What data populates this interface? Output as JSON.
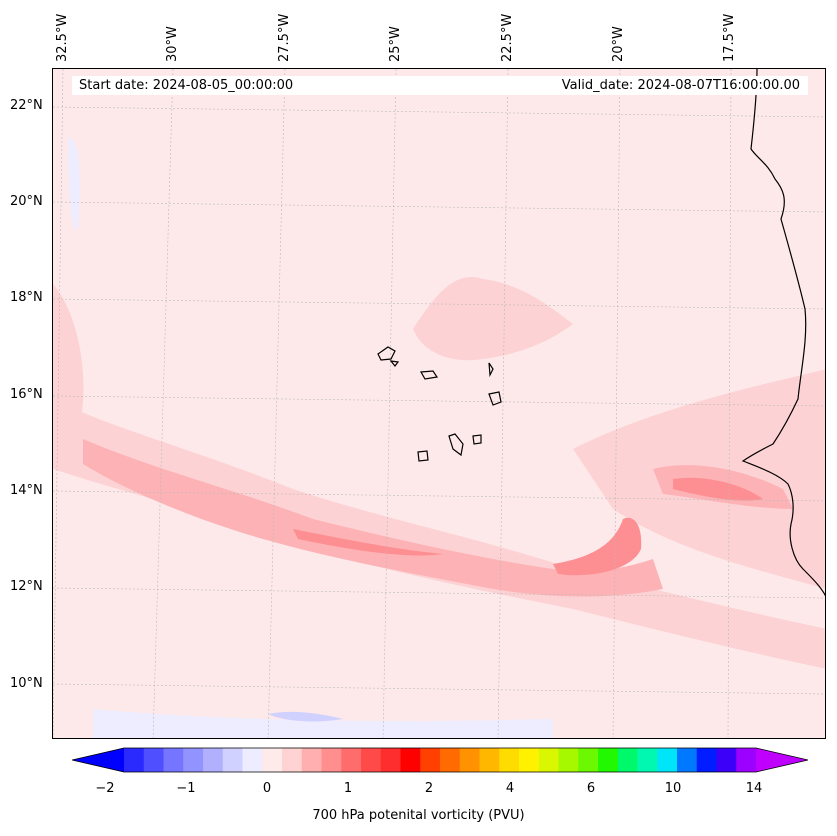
{
  "map": {
    "start_text": "Start date: 2024-08-05_00:00:00",
    "valid_text": "Valid_date: 2024-08-07T16:00:00.00",
    "longitude_labels": [
      "32.5°W",
      "30°W",
      "27.5°W",
      "25°W",
      "22.5°W",
      "20°W",
      "17.5°W"
    ],
    "latitude_labels": [
      "22°N",
      "20°N",
      "18°N",
      "16°N",
      "14°N",
      "12°N",
      "10°N"
    ],
    "background_color": "#fde9ea"
  },
  "colorbar": {
    "label": "700 hPa potenital vorticity (PVU)",
    "tick_labels": [
      "−2",
      "−1",
      "0",
      "1",
      "2",
      "4",
      "6",
      "10",
      "14"
    ],
    "colors": [
      "#0000ff",
      "#2a2aff",
      "#4f4fff",
      "#7575ff",
      "#9393ff",
      "#b0b0ff",
      "#d1d1ff",
      "#ededff",
      "#ffeaea",
      "#ffd3d3",
      "#ffafaf",
      "#ff8f8f",
      "#ff6c6c",
      "#ff4a4a",
      "#ff2e2e",
      "#ff0000",
      "#ff4000",
      "#ff6b00",
      "#ff9200",
      "#ffb700",
      "#ffdc00",
      "#fff200",
      "#d9f700",
      "#a6f800",
      "#6cf800",
      "#22f800",
      "#00f86b",
      "#00f8b0",
      "#00e5f8",
      "#0078ff",
      "#001cff",
      "#3c00f8",
      "#9c00ff",
      "#c000ff"
    ]
  }
}
